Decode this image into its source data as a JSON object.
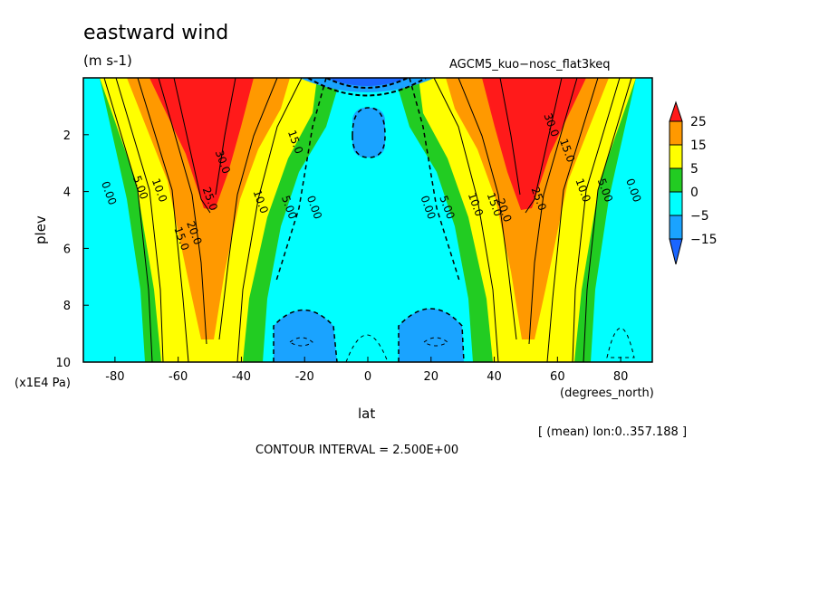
{
  "chart_data": {
    "type": "heatmap",
    "title": "eastward wind",
    "units": "(m s-1)",
    "dataset_label": "AGCM5_kuo−nosc_flat3keq",
    "xlabel": "lat",
    "x_units": "(degrees_north)",
    "ylabel": "plev",
    "y_units": "(x1E4 Pa)",
    "xlim": [
      -90,
      90
    ],
    "ylim": [
      10,
      0
    ],
    "x_ticks": [
      -80,
      -60,
      -40,
      -20,
      0,
      20,
      40,
      60,
      80
    ],
    "y_ticks": [
      2,
      4,
      6,
      8,
      10
    ],
    "contour_interval_text": "CONTOUR INTERVAL = 2.500E+00",
    "mean_text": "[ (mean) lon:0..357.188 ]",
    "colorbar": {
      "labels": [
        "25",
        "15",
        "5",
        "0",
        "−5",
        "−15"
      ],
      "bands": [
        {
          "range": "above 25",
          "color": "#ff1a1a"
        },
        {
          "range": "15 to 25",
          "color": "#ff9900"
        },
        {
          "range": "5 to 15",
          "color": "#ffff00"
        },
        {
          "range": "0 to 5",
          "color": "#22cc22"
        },
        {
          "range": "-5 to 0",
          "color": "#00ffff"
        },
        {
          "range": "-15 to -5",
          "color": "#1aa3ff"
        },
        {
          "range": "below -15",
          "color": "#1a66ff"
        }
      ]
    },
    "contour_labels": [
      {
        "text": "0.00",
        "lat": -83,
        "plev": 4.1
      },
      {
        "text": "5.00",
        "lat": -73,
        "plev": 3.9
      },
      {
        "text": "10.0",
        "lat": -67,
        "plev": 4.0
      },
      {
        "text": "15.0",
        "lat": -60,
        "plev": 5.7
      },
      {
        "text": "20.0",
        "lat": -56,
        "plev": 5.5
      },
      {
        "text": "25.0",
        "lat": -51,
        "plev": 4.3
      },
      {
        "text": "30.0",
        "lat": -47,
        "plev": 3.0
      },
      {
        "text": "10.0",
        "lat": -35,
        "plev": 4.4
      },
      {
        "text": "15.0",
        "lat": -24,
        "plev": 2.3
      },
      {
        "text": "5.00",
        "lat": -26,
        "plev": 4.6
      },
      {
        "text": "0.00",
        "lat": -18,
        "plev": 4.6
      },
      {
        "text": "0.00",
        "lat": 18,
        "plev": 4.6
      },
      {
        "text": "5.00",
        "lat": 24,
        "plev": 4.6
      },
      {
        "text": "10.0",
        "lat": 33,
        "plev": 4.5
      },
      {
        "text": "15.0",
        "lat": 39,
        "plev": 4.5
      },
      {
        "text": "20.0",
        "lat": 42,
        "plev": 4.7
      },
      {
        "text": "25.0",
        "lat": 53,
        "plev": 4.3
      },
      {
        "text": "30.0",
        "lat": 57,
        "plev": 1.7
      },
      {
        "text": "15.0",
        "lat": 62,
        "plev": 2.6
      },
      {
        "text": "10.0",
        "lat": 67,
        "plev": 4.0
      },
      {
        "text": "5.00",
        "lat": 74,
        "plev": 4.0
      },
      {
        "text": "0.00",
        "lat": 83,
        "plev": 4.0
      }
    ]
  }
}
